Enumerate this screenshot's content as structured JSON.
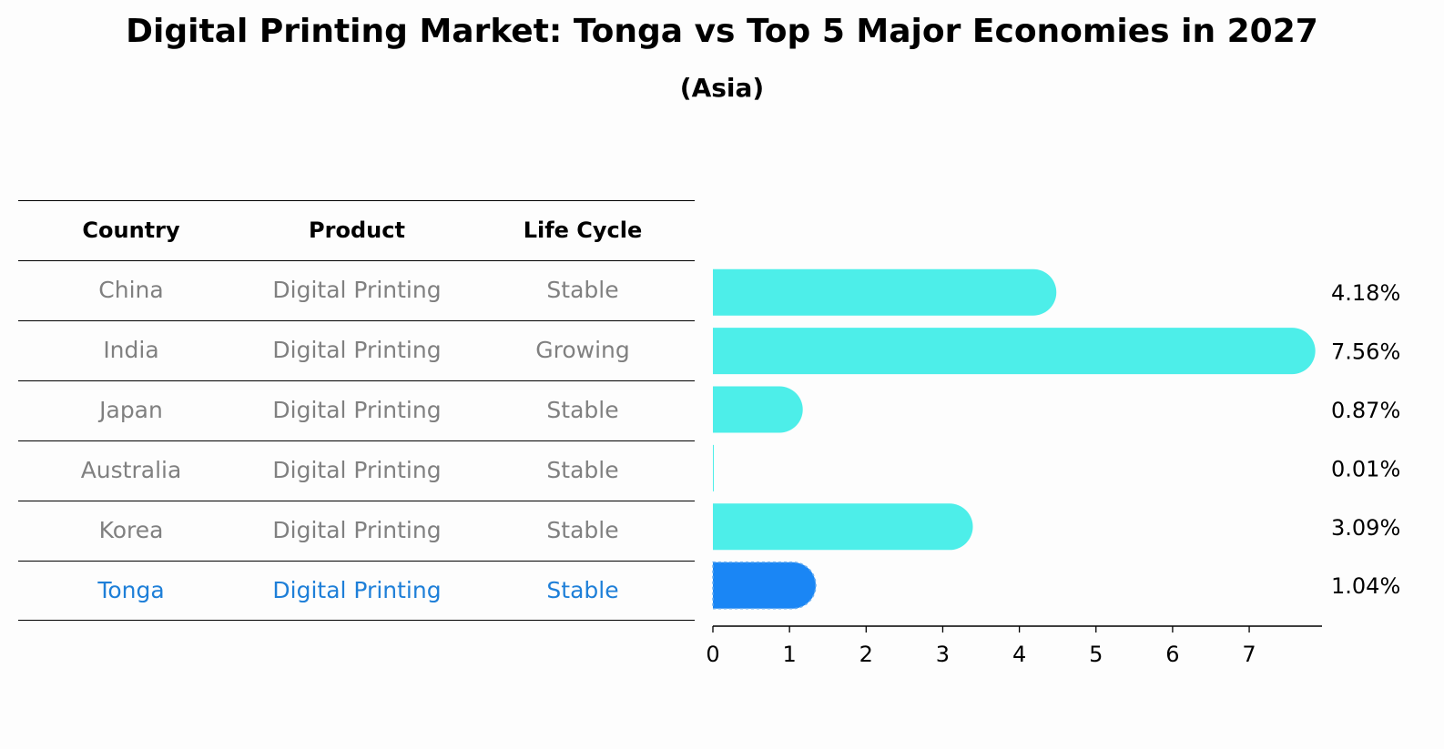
{
  "title": "Digital Printing Market: Tonga vs Top 5 Major Economies in 2027",
  "subtitle": "(Asia)",
  "table": {
    "headers": [
      "Country",
      "Product",
      "Life Cycle"
    ],
    "rows": [
      {
        "country": "China",
        "product": "Digital Printing",
        "life_cycle": "Stable"
      },
      {
        "country": "India",
        "product": "Digital Printing",
        "life_cycle": "Growing"
      },
      {
        "country": "Japan",
        "product": "Digital Printing",
        "life_cycle": "Stable"
      },
      {
        "country": "Australia",
        "product": "Digital Printing",
        "life_cycle": "Stable"
      },
      {
        "country": "Korea",
        "product": "Digital Printing",
        "life_cycle": "Stable"
      },
      {
        "country": "Tonga",
        "product": "Digital Printing",
        "life_cycle": "Stable"
      }
    ]
  },
  "colors": {
    "bar": "#4deee9",
    "highlight_bar": "#1a86f5",
    "row_text": "#808080",
    "highlight_text": "#1e7fd8"
  },
  "chart_data": {
    "type": "bar",
    "orientation": "horizontal",
    "categories": [
      "China",
      "India",
      "Japan",
      "Australia",
      "Korea",
      "Tonga"
    ],
    "values": [
      4.18,
      7.56,
      0.87,
      0.01,
      3.09,
      1.04
    ],
    "value_labels": [
      "4.18%",
      "7.56%",
      "0.87%",
      "0.01%",
      "3.09%",
      "1.04%"
    ],
    "highlight": "Tonga",
    "xticks": [
      "0",
      "1",
      "2",
      "3",
      "4",
      "5",
      "6",
      "7"
    ],
    "xlim": [
      0,
      7.95
    ],
    "xlabel": "",
    "ylabel": ""
  }
}
